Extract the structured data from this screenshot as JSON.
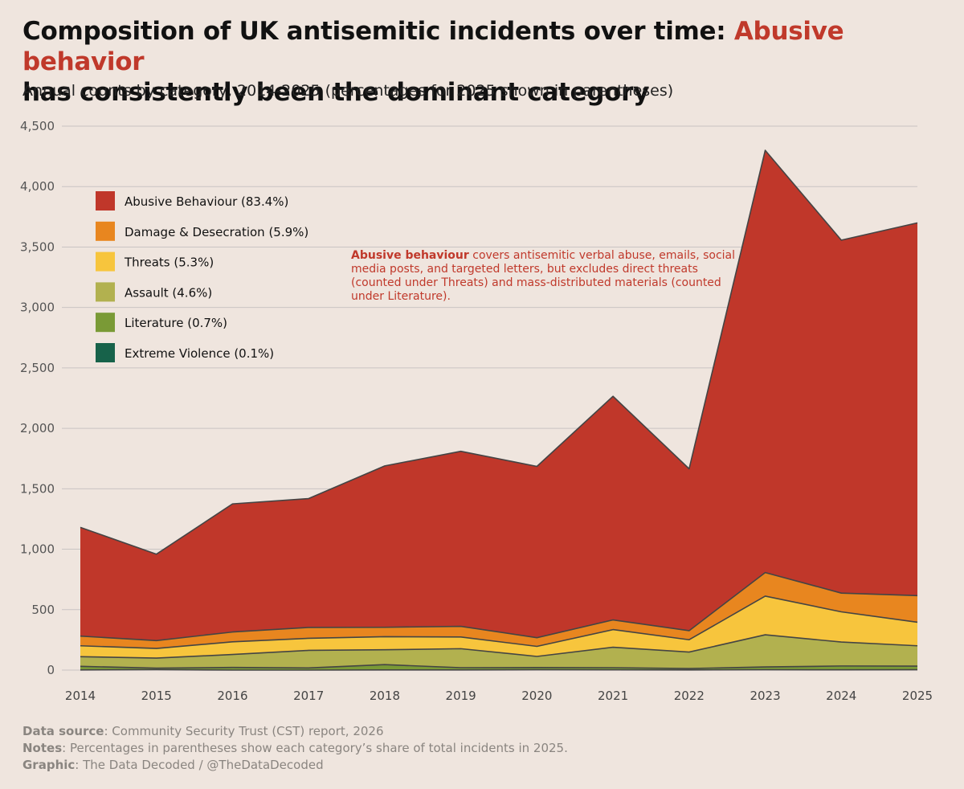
{
  "header": {
    "title_part1": "Composition of UK antisemitic incidents over time: ",
    "title_highlight": "Abusive behavior",
    "title_part2": "has consistently been the dominant category",
    "subtitle": "Annual counts by category, 2014-2025 (percentages for 2025 shown in parentheses)"
  },
  "annotation": {
    "bold": "Abusive behaviour",
    "text": " covers antisemitic verbal abuse, emails, social media posts, and targeted letters, but excludes direct threats (counted under Threats) and mass-distributed materials (counted under Literature)."
  },
  "footer": {
    "source_label": "Data source",
    "source_text": ": Community Security Trust (CST) report, 2026",
    "notes_label": "Notes",
    "notes_text": ": Percentages in parentheses show each category’s share of total incidents in 2025.",
    "graphic_label": "Graphic",
    "graphic_text": ": The Data Decoded / @TheDataDecoded"
  },
  "chart_data": {
    "type": "area",
    "stacked": true,
    "x": [
      2014,
      2015,
      2016,
      2017,
      2018,
      2019,
      2020,
      2021,
      2022,
      2023,
      2024,
      2025
    ],
    "ylim": [
      0,
      4500
    ],
    "yticks": [
      0,
      500,
      1000,
      1500,
      2000,
      2500,
      3000,
      3500,
      4000,
      4500
    ],
    "ytick_labels": [
      "0",
      "500",
      "1,000",
      "1,500",
      "2,000",
      "2,500",
      "3,000",
      "3,500",
      "4,000",
      "4,500"
    ],
    "grid": true,
    "legend_position": "top-left",
    "series": [
      {
        "name": "Extreme Violence (0.1%)",
        "color": "#17624a",
        "values": [
          1,
          4,
          0,
          0,
          1,
          1,
          3,
          2,
          1,
          3,
          2,
          3
        ]
      },
      {
        "name": "Literature (0.7%)",
        "color": "#7a9a36",
        "values": [
          30,
          12,
          22,
          18,
          44,
          19,
          18,
          18,
          12,
          23,
          32,
          30
        ]
      },
      {
        "name": "Assault (4.6%)",
        "color": "#b2b14f",
        "values": [
          80,
          83,
          107,
          145,
          123,
          157,
          92,
          169,
          136,
          266,
          198,
          168
        ]
      },
      {
        "name": "Threats (5.3%)",
        "color": "#f7c53d",
        "values": [
          90,
          80,
          105,
          100,
          108,
          97,
          83,
          146,
          102,
          320,
          250,
          195
        ]
      },
      {
        "name": "Damage & Desecration (5.9%)",
        "color": "#e8861f",
        "values": [
          80,
          65,
          81,
          90,
          78,
          88,
          72,
          80,
          75,
          195,
          155,
          220
        ]
      },
      {
        "name": "Abusive Behaviour (83.4%)",
        "color": "#c0372a",
        "values": [
          900,
          715,
          1060,
          1066,
          1335,
          1448,
          1417,
          1850,
          1339,
          3493,
          2920,
          3084
        ]
      }
    ]
  }
}
